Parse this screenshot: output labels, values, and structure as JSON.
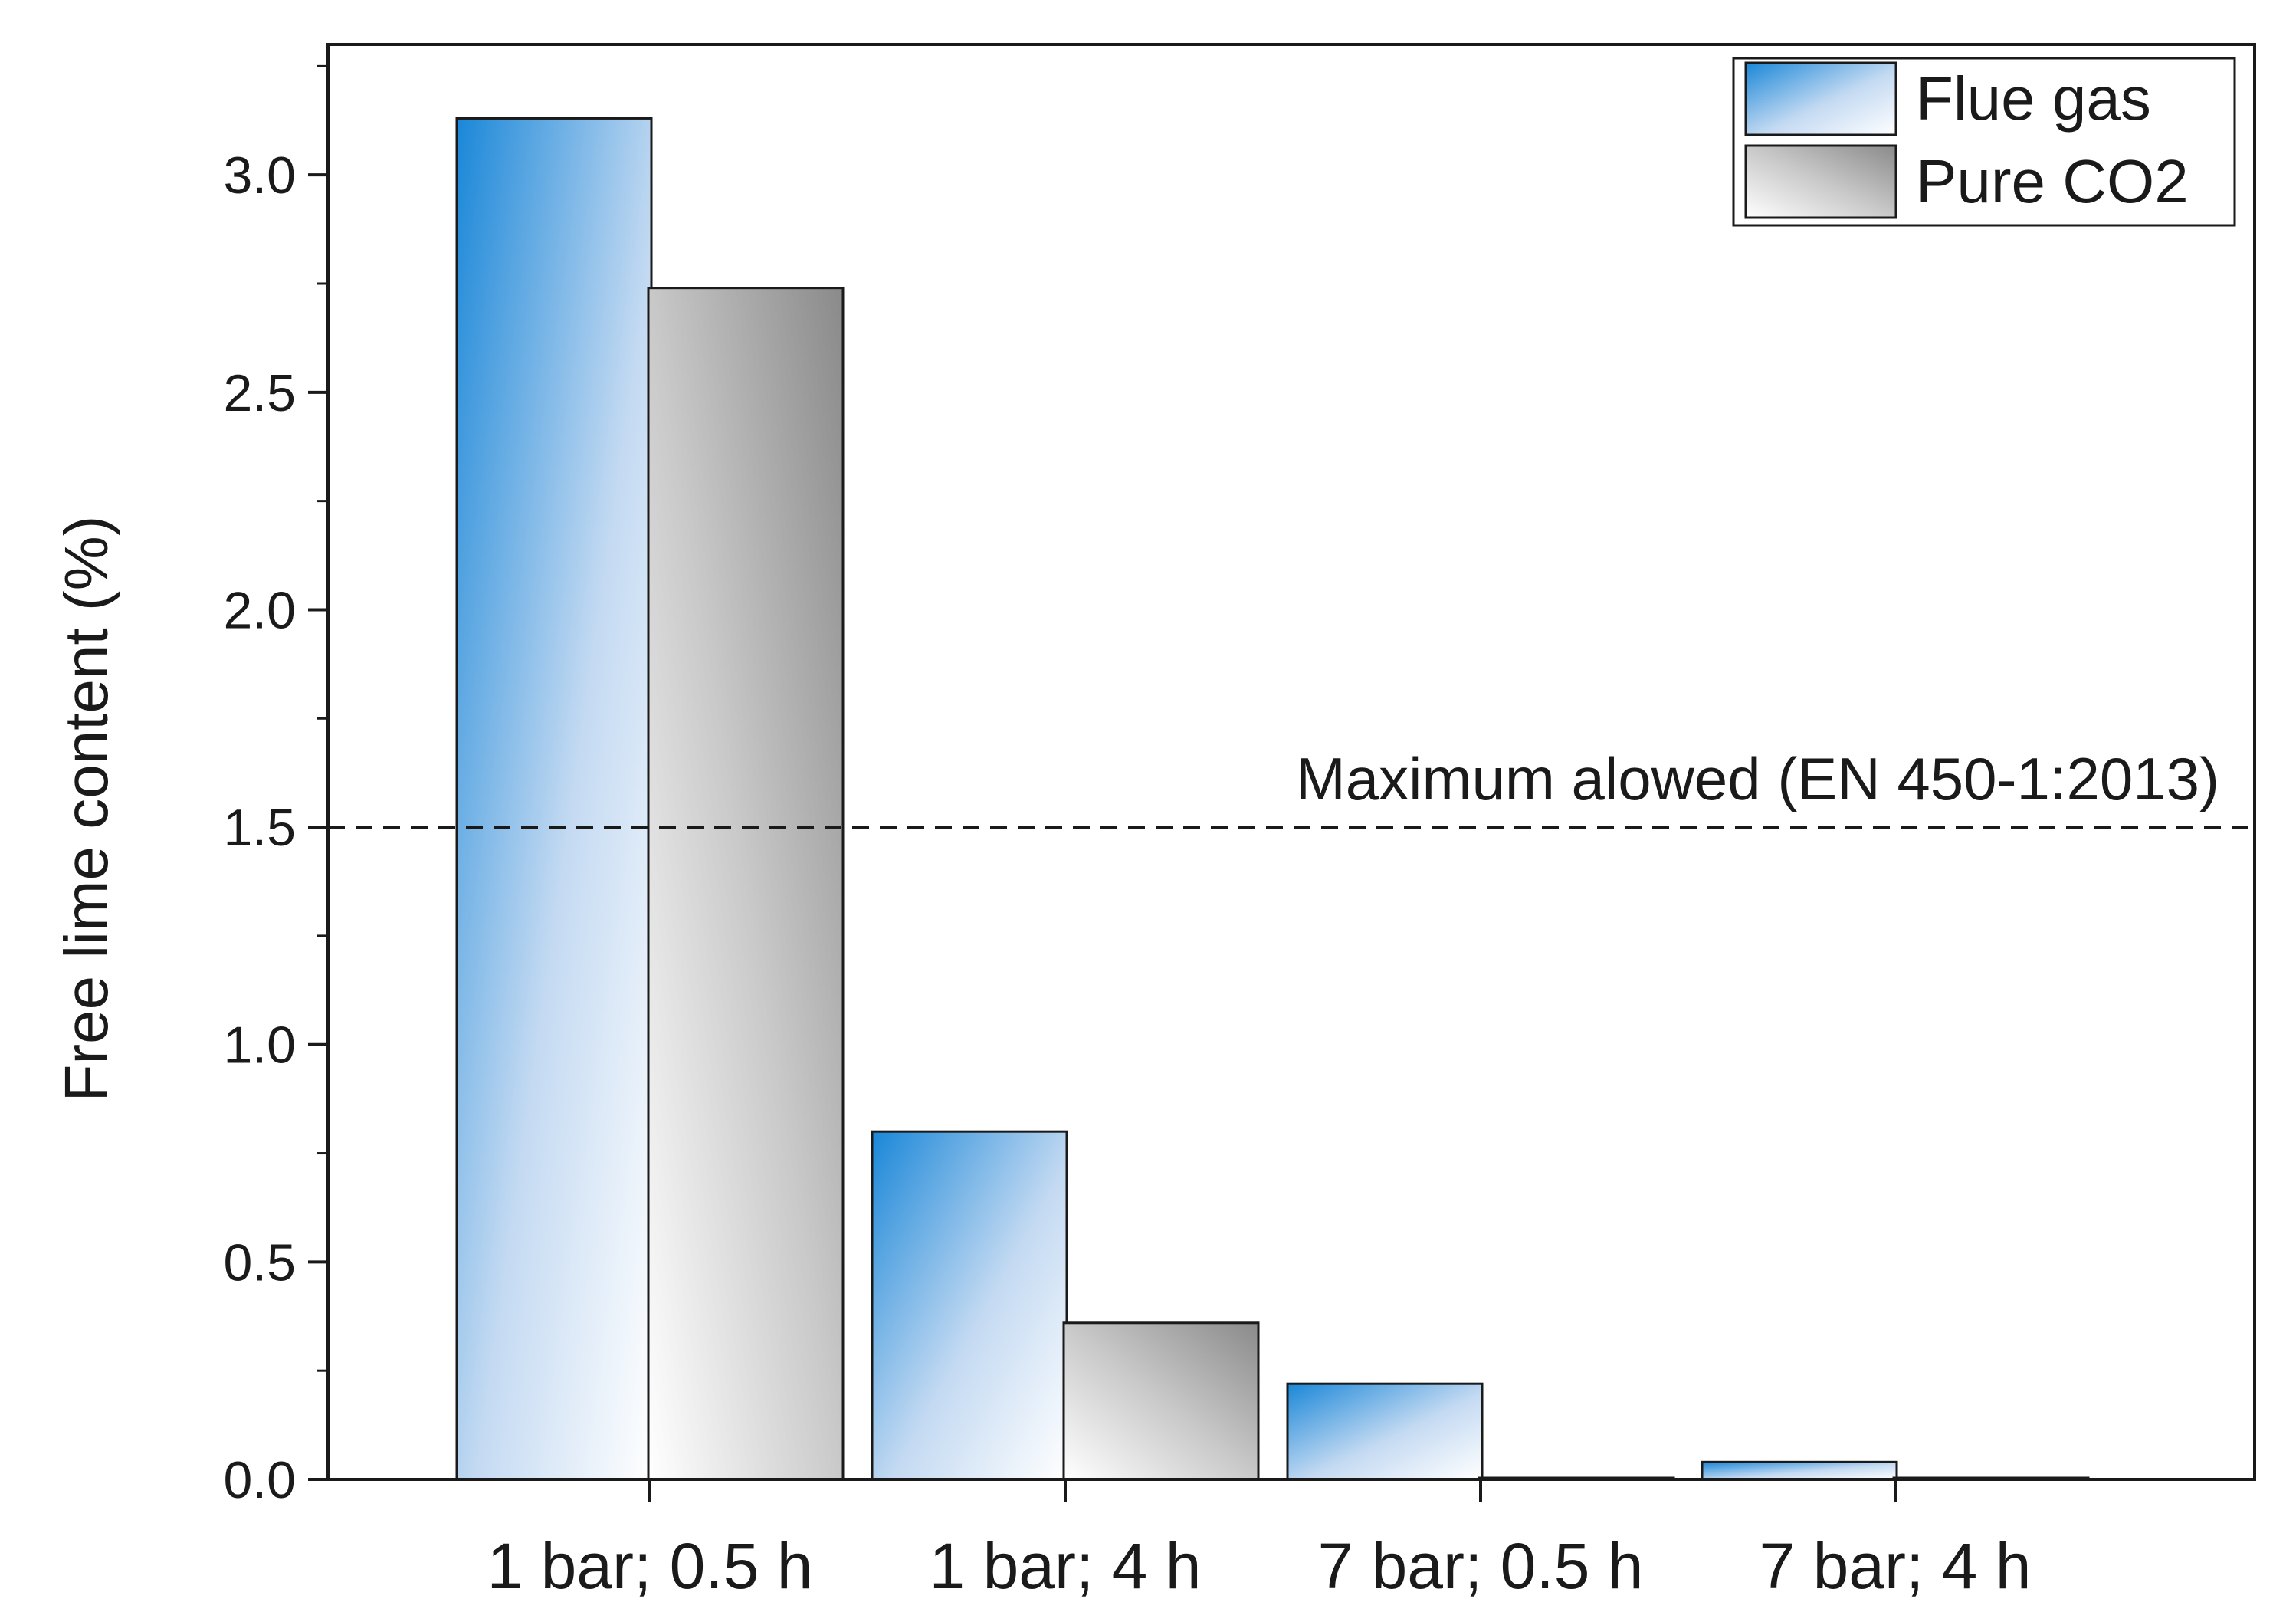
{
  "chart_data": {
    "type": "bar",
    "title": "",
    "xlabel": "",
    "ylabel": "Free lime content (%)",
    "categories": [
      "1 bar; 0.5 h",
      "1 bar; 4 h",
      "7 bar; 0.5 h",
      "7 bar; 4 h"
    ],
    "series": [
      {
        "name": "Flue gas",
        "values": [
          3.13,
          0.8,
          0.22,
          0.04
        ]
      },
      {
        "name": "Pure CO2",
        "values": [
          2.74,
          0.36,
          0.0,
          0.0
        ]
      }
    ],
    "ylim": [
      0,
      3.3
    ],
    "yticks": [
      "0.0",
      "0.5",
      "1.0",
      "1.5",
      "2.0",
      "2.5",
      "3.0"
    ],
    "reference_line": {
      "value": 1.5,
      "label": "Maximum alowed  (EN 450-1:2013)"
    },
    "legend": "top-right",
    "grid": false,
    "colors": {
      "flue_gas": "#1a87d8",
      "pure_co2": "#8a8a8a",
      "axis": "#1a1a1a"
    }
  }
}
